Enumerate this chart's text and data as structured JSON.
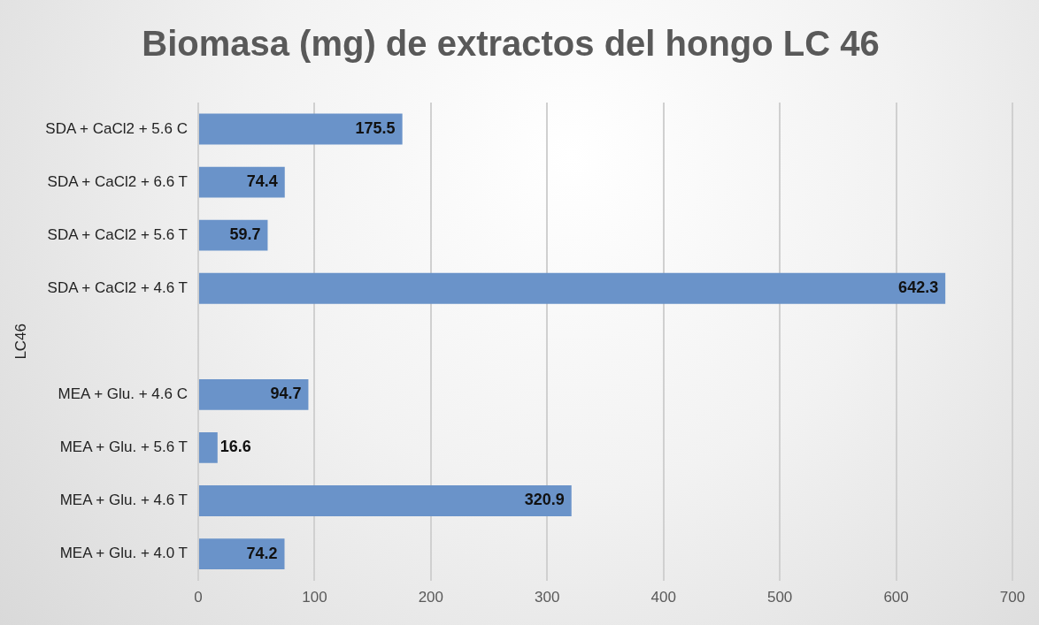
{
  "chart_data": {
    "type": "bar",
    "orientation": "horizontal",
    "title": "Biomasa (mg) de extractos del hongo LC 46",
    "ylabel": "LC46",
    "categories": [
      "SDA + CaCl2 + 5.6 C",
      "SDA + CaCl2 + 6.6 T",
      "SDA + CaCl2 + 5.6 T",
      "SDA + CaCl2 + 4.6 T",
      null,
      "MEA + Glu. + 4.6 C",
      "MEA + Glu. + 5.6 T",
      "MEA + Glu. + 4.6 T",
      "MEA + Glu. + 4.0 T"
    ],
    "values": [
      175.5,
      74.4,
      59.7,
      642.3,
      null,
      94.7,
      16.6,
      320.9,
      74.2
    ],
    "color": "#6a93c9",
    "xlim": [
      0,
      700
    ],
    "xticks": [
      0,
      100,
      200,
      300,
      400,
      500,
      600,
      700
    ],
    "grid": "x",
    "data_labels": true,
    "legend": false
  }
}
